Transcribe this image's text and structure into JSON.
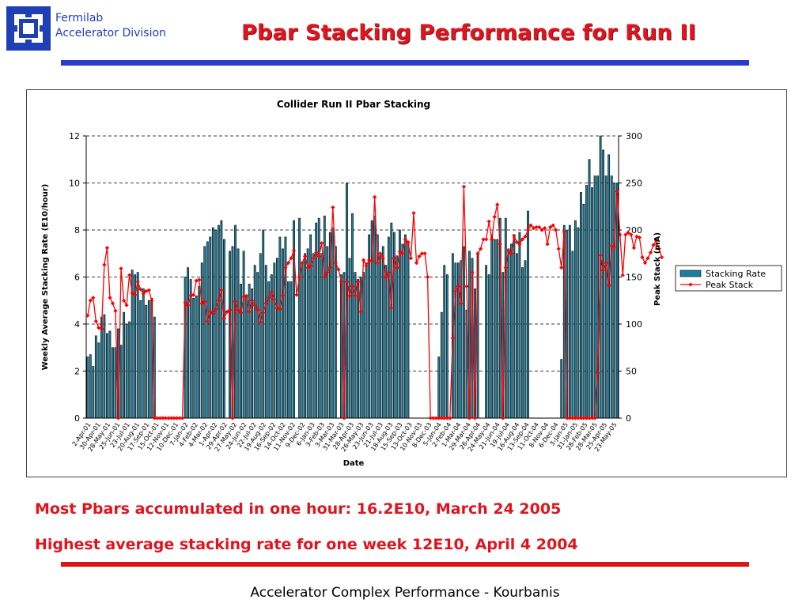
{
  "header": {
    "org_line1": "Fermilab",
    "org_line2": "Accelerator Division",
    "title": "Pbar Stacking Performance for Run II",
    "logo_icon": "fermilab-logo-icon"
  },
  "notes": {
    "line1": "Most Pbars accumulated in one hour: 16.2E10, March 24 2005",
    "line2": "Highest average stacking rate for one week 12E10, April 4 2004"
  },
  "footer": {
    "text": "Accelerator Complex Performance - Kourbanis"
  },
  "colors": {
    "title": "#e0141e",
    "brand_blue": "#2a3cc8",
    "bar": "#1a7fa0",
    "line": "#ff0000"
  },
  "chart_data": {
    "type": "bar+line",
    "title": "Collider Run II Pbar Stacking",
    "xlabel": "Date",
    "ylabel": "Weekly Average Stacking Rate (E10/hour)",
    "y2label": "Peak Stack (mA)",
    "ylim": [
      0,
      12
    ],
    "y2lim": [
      0,
      300
    ],
    "yticks": [
      "0",
      "2",
      "4",
      "6",
      "8",
      "10",
      "12"
    ],
    "y2ticks": [
      "0",
      "50",
      "100",
      "150",
      "200",
      "250",
      "300"
    ],
    "grid": "dashed horizontal",
    "legend_position": "right",
    "xtick_labels": [
      "2-Apr-01",
      "30-Apr-01",
      "28-May-01",
      "25-Jun-01",
      "23-Jul-01",
      "20-Aug-01",
      "17-Sep-01",
      "15-Oct-01",
      "12-Nov-01",
      "10-Dec-01",
      "7-Jan-02",
      "4-Feb-02",
      "4-Mar-02",
      "1-Apr-02",
      "29-Apr-02",
      "27-May-02",
      "24-Jun-02",
      "22-Jul-02",
      "19-Aug-02",
      "16-Sep-02",
      "14-Oct-02",
      "11-Nov-02",
      "9-Dec-02",
      "6-Jan-03",
      "3-Feb-03",
      "3-Mar-03",
      "31-Mar-03",
      "28-Apr-03",
      "26-May-03",
      "23-Jun-03",
      "21-Jul-03",
      "18-Aug-03",
      "15-Sep-03",
      "13-Oct-03",
      "10-Nov-03",
      "8-Dec-03",
      "5-Jan-04",
      "2-Feb-04",
      "1-Mar-04",
      "29-Mar-04",
      "26-Apr-04",
      "24-May-04",
      "21-Jun-04",
      "19-Jul-04",
      "16-Aug-04",
      "13-Sep-04",
      "11-Oct-04",
      "8-Nov-04",
      "6-Dec-04",
      "3-Jan-05",
      "31-Jan-05",
      "28-Feb-05",
      "28-Mar-05",
      "25-Apr-05",
      "23-May-05"
    ],
    "series": [
      {
        "name": "Stacking Rate",
        "values": [
          2.6,
          2.7,
          2.2,
          3.5,
          3.2,
          4.3,
          4.4,
          3.6,
          3.7,
          3.0,
          3.0,
          3.8,
          3.1,
          4.5,
          4.0,
          4.1,
          6.3,
          6.1,
          6.2,
          5.0,
          5.5,
          4.8,
          5.0,
          5.1,
          4.3,
          0,
          0,
          0,
          0,
          0,
          0,
          0,
          0,
          0,
          0,
          6.0,
          6.4,
          5.9,
          5.1,
          5.2,
          5.6,
          6.6,
          7.3,
          7.5,
          7.7,
          8.1,
          8.0,
          8.2,
          8.4,
          7.6,
          0,
          7.1,
          7.3,
          8.2,
          7.2,
          5.7,
          7.1,
          5.2,
          5.7,
          5.5,
          6.5,
          6.2,
          7.0,
          8.0,
          6.5,
          5.8,
          6.1,
          6.6,
          6.8,
          7.7,
          7.2,
          7.7,
          5.8,
          5.8,
          8.4,
          0,
          8.5,
          6.6,
          7.0,
          7.2,
          7.8,
          7.0,
          8.3,
          8.5,
          7.0,
          8.6,
          7.3,
          7.9,
          8.1,
          7.3,
          0,
          6.1,
          6.2,
          10.0,
          6.8,
          8.7,
          6.2,
          5.9,
          6.0,
          6.2,
          6.6,
          7.8,
          8.4,
          8.6,
          7.8,
          6.9,
          7.3,
          6.5,
          7.7,
          8.3,
          7.9,
          6.9,
          8.0,
          7.4,
          7.8,
          7.5,
          0,
          0,
          0,
          0,
          0,
          0,
          0,
          0,
          0,
          0,
          2.6,
          4.5,
          6.5,
          6.1,
          0,
          7.0,
          6.6,
          6.6,
          6.7,
          7.3,
          4.6,
          7.1,
          6.8,
          5.5,
          7.0,
          0,
          0,
          6.5,
          6.1,
          7.8,
          7.6,
          7.6,
          8.5,
          6.2,
          8.5,
          7.2,
          7.4,
          7.8,
          7.0,
          7.9,
          6.4,
          6.7,
          8.8,
          0,
          0,
          0,
          0,
          0,
          0,
          0,
          0,
          0,
          0,
          0,
          2.5,
          8.2,
          8.0,
          8.2,
          7.1,
          8.4,
          8.1,
          9.6,
          9.1,
          9.9,
          11.0,
          9.8,
          10.3,
          10.3,
          12.0,
          11.4,
          10.3,
          11.2,
          10.3,
          10.0,
          10.0
        ]
      },
      {
        "name": "Peak Stack",
        "values": [
          109,
          125,
          128,
          103,
          96,
          95,
          163,
          181,
          128,
          122,
          114,
          0,
          159,
          125,
          120,
          152,
          133,
          131,
          145,
          137,
          132,
          135,
          136,
          125,
          0,
          0,
          0,
          0,
          0,
          0,
          0,
          0,
          0,
          0,
          0,
          123,
          120,
          130,
          131,
          146,
          147,
          122,
          124,
          103,
          113,
          111,
          116,
          125,
          136,
          106,
          113,
          115,
          0,
          124,
          115,
          112,
          129,
          130,
          113,
          125,
          120,
          115,
          102,
          112,
          122,
          128,
          134,
          126,
          117,
          116,
          130,
          160,
          165,
          170,
          178,
          131,
          150,
          165,
          172,
          160,
          162,
          170,
          176,
          172,
          186,
          150,
          155,
          160,
          224,
          165,
          158,
          145,
          0,
          145,
          130,
          140,
          130,
          145,
          113,
          168,
          162,
          168,
          167,
          235,
          165,
          175,
          170,
          150,
          155,
          117,
          170,
          160,
          177,
          175,
          190,
          187,
          170,
          218,
          165,
          172,
          175,
          175,
          150,
          0,
          0,
          0,
          0,
          0,
          0,
          0,
          0,
          85,
          135,
          140,
          122,
          246,
          140,
          0,
          155,
          0,
          175,
          180,
          190,
          190,
          209,
          190,
          214,
          227,
          185,
          0,
          160,
          178,
          175,
          194,
          187,
          185,
          190,
          193,
          200,
          205,
          202,
          203,
          203,
          200,
          202,
          185,
          203,
          205,
          200,
          180,
          160,
          198,
          0,
          0,
          0,
          0,
          0,
          0,
          0,
          0,
          0,
          0,
          0,
          48,
          173,
          157,
          165,
          141,
          183,
          182,
          241,
          195,
          152,
          195,
          197,
          195,
          181,
          193,
          192,
          171,
          165,
          170,
          176,
          184,
          189,
          180,
          171
        ]
      }
    ]
  }
}
